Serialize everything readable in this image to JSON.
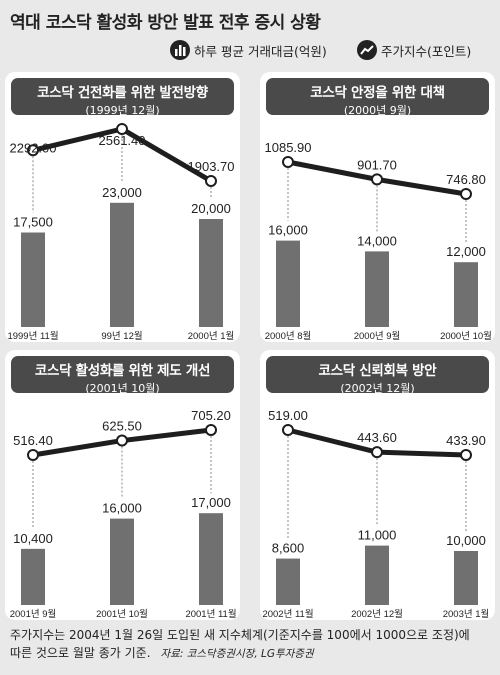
{
  "title": "역대 코스닥 활성화 방안 발표 전후 증시 상황",
  "legend": {
    "bar_label": "하루 평균 거래대금(억원)",
    "line_label": "주가지수(포인트)"
  },
  "chart_data": [
    {
      "type": "bar",
      "title": "코스닥 건전화를 위한 발전방향",
      "subtitle": "(1999년 12월)",
      "categories": [
        "1999년 11월",
        "99년 12월",
        "2000년 1월"
      ],
      "series": [
        {
          "name": "하루 평균 거래대금(억원)",
          "values": [
            17500,
            23000,
            20000
          ],
          "labels": [
            "17,500",
            "23,000",
            "20,000"
          ]
        },
        {
          "name": "주가지수(포인트)",
          "values": [
            2292.0,
            2561.4,
            1903.7
          ],
          "labels": [
            "2292.00",
            "2561.40",
            "1903.70"
          ]
        }
      ]
    },
    {
      "type": "bar",
      "title": "코스닥 안정을 위한 대책",
      "subtitle": "(2000년 9월)",
      "categories": [
        "2000년 8월",
        "2000년 9월",
        "2000년 10월"
      ],
      "series": [
        {
          "name": "하루 평균 거래대금(억원)",
          "values": [
            16000,
            14000,
            12000
          ],
          "labels": [
            "16,000",
            "14,000",
            "12,000"
          ]
        },
        {
          "name": "주가지수(포인트)",
          "values": [
            1085.9,
            901.7,
            746.8
          ],
          "labels": [
            "1085.90",
            "901.70",
            "746.80"
          ]
        }
      ]
    },
    {
      "type": "bar",
      "title": "코스닥 활성화를 위한 제도 개선",
      "subtitle": "(2001년 10월)",
      "categories": [
        "2001년 9월",
        "2001년 10월",
        "2001년 11월"
      ],
      "series": [
        {
          "name": "하루 평균 거래대금(억원)",
          "values": [
            10400,
            16000,
            17000
          ],
          "labels": [
            "10,400",
            "16,000",
            "17,000"
          ]
        },
        {
          "name": "주가지수(포인트)",
          "values": [
            516.4,
            625.5,
            705.2
          ],
          "labels": [
            "516.40",
            "625.50",
            "705.20"
          ]
        }
      ]
    },
    {
      "type": "bar",
      "title": "코스닥 신뢰회복 방안",
      "subtitle": "(2002년 12월)",
      "categories": [
        "2002년 11월",
        "2002년 12월",
        "2003년 1월"
      ],
      "series": [
        {
          "name": "하루 평균 거래대금(억원)",
          "values": [
            8600,
            11000,
            10000
          ],
          "labels": [
            "8,600",
            "11,000",
            "10,000"
          ]
        },
        {
          "name": "주가지수(포인트)",
          "values": [
            519.0,
            443.6,
            433.9
          ],
          "labels": [
            "519.00",
            "443.60",
            "433.90"
          ]
        }
      ]
    }
  ],
  "footnote": {
    "line1": "주가지수는 2004년 1월 26일 도입된 새 지수체계(기준지수를 100에서 1000으로 조정)에",
    "line2": "따른 것으로 월말 종가 기준.",
    "source": "자료: 코스닥증권시장, LG투자증권"
  },
  "colors": {
    "background": "#e9e9e9",
    "panel": "#ffffff",
    "header": "#4a4a4a",
    "bar": "#707070",
    "line": "#1e1e1e"
  }
}
